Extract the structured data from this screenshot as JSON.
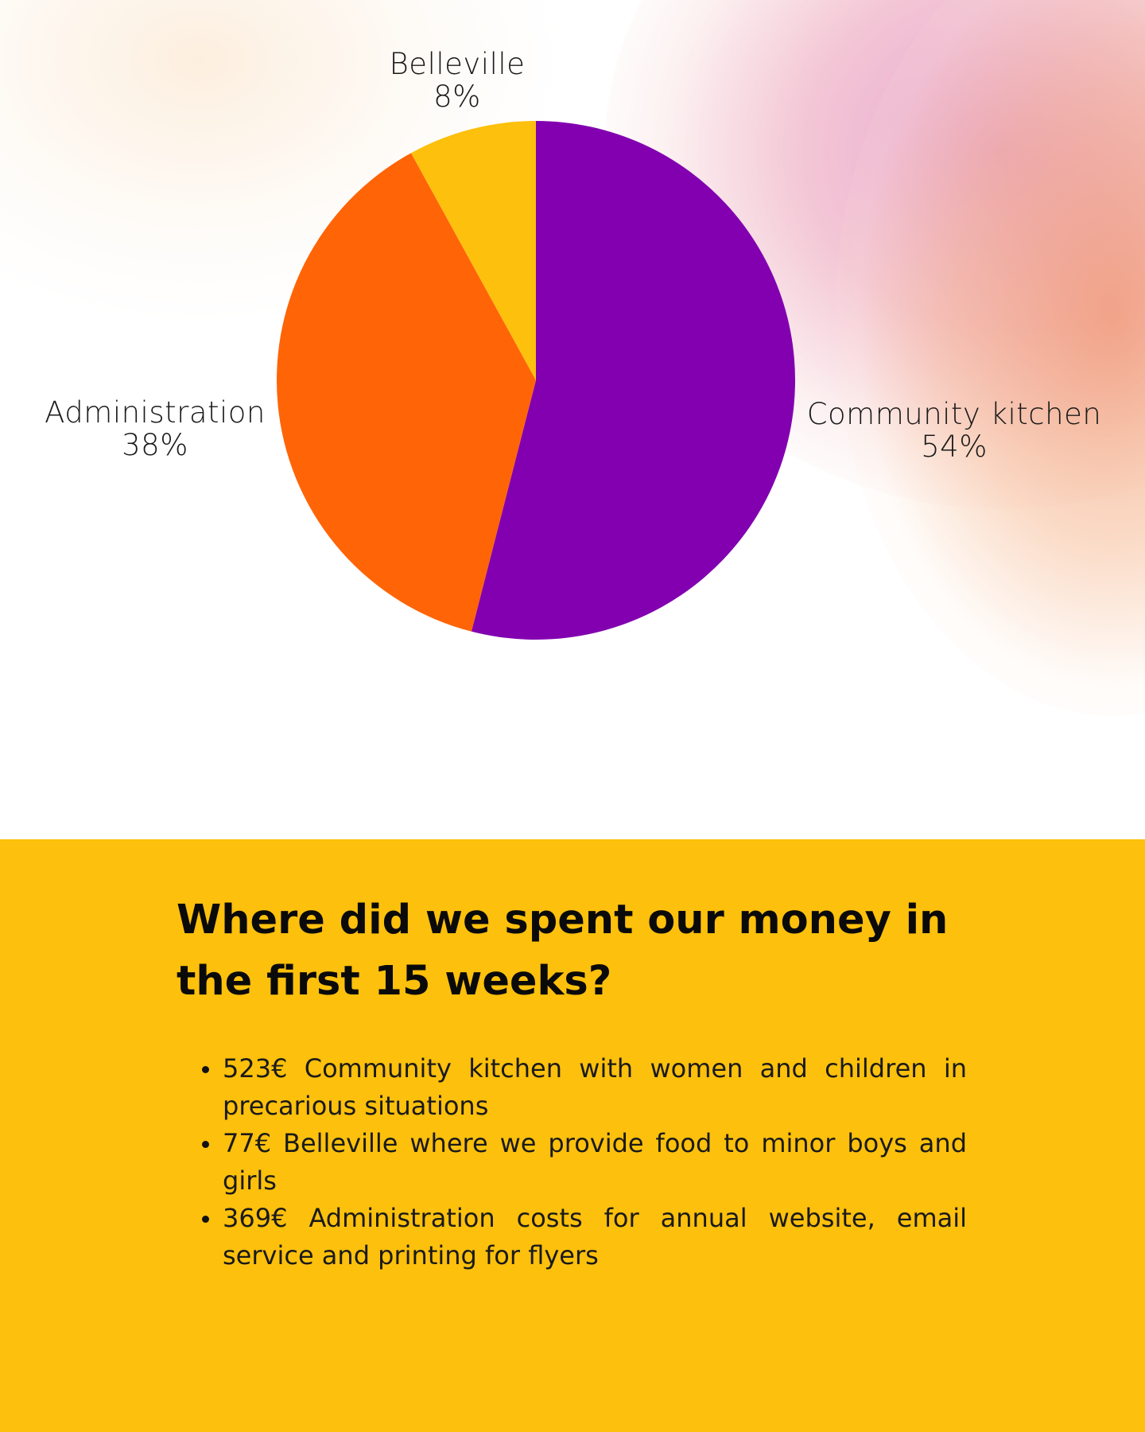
{
  "chart_data": {
    "type": "pie",
    "title": "",
    "slices": [
      {
        "label": "Community kitchen",
        "percent": 54,
        "value_eur": 523,
        "color": "#8200b0"
      },
      {
        "label": "Administration",
        "percent": 38,
        "value_eur": 369,
        "color": "#ff6407"
      },
      {
        "label": "Belleville",
        "percent": 8,
        "value_eur": 77,
        "color": "#fdc00c"
      }
    ],
    "start_angle_deg": 0,
    "direction": "clockwise",
    "legend": "none",
    "labels_outside": true
  },
  "labels": {
    "belleville": {
      "name": "Belleville",
      "pct": "8%"
    },
    "administration": {
      "name": "Administration",
      "pct": "38%"
    },
    "community": {
      "name": "Community kitchen",
      "pct": "54%"
    }
  },
  "section": {
    "title": "Where did we spent our money in the first 15 weeks?",
    "items": [
      "523€ Community kitchen with women and children in precarious situations",
      "77€  Belleville where we provide food to minor boys and girls",
      "369€  Administration costs for annual website, email service and printing for flyers"
    ]
  },
  "colors": {
    "purple": "#8200b0",
    "orange": "#ff6407",
    "yellow": "#fdc00c"
  }
}
